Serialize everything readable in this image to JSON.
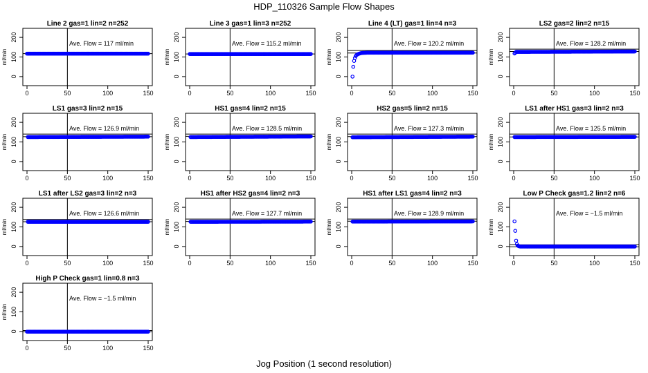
{
  "figure": {
    "title": "HDP_110326  Sample Flow Shapes",
    "xlabel": "Jog Position (1 second resolution)"
  },
  "chart_data": [
    {
      "type": "scatter",
      "title": "Line 2 gas=1 lin=2 n=252",
      "ylabel": "ml/min",
      "annotation": "Ave. Flow =  117  ml/min",
      "xlim": [
        0,
        150
      ],
      "ylim": [
        -25,
        225
      ],
      "xticks": [
        0,
        50,
        100,
        150
      ],
      "yticks": [
        0,
        100,
        200
      ],
      "vline": 50,
      "hline": 117,
      "x": [
        0,
        150
      ],
      "y": [
        117,
        117
      ],
      "color": "#0000ff"
    },
    {
      "type": "scatter",
      "title": "Line 3 gas=1 lin=3 n=252",
      "ylabel": "ml/min",
      "annotation": "Ave. Flow =  115.2  ml/min",
      "xlim": [
        0,
        150
      ],
      "ylim": [
        -25,
        225
      ],
      "xticks": [
        0,
        50,
        100,
        150
      ],
      "yticks": [
        0,
        100,
        200
      ],
      "vline": 50,
      "hline": 115.2,
      "x": [
        0,
        150
      ],
      "y": [
        115,
        115
      ],
      "color": "#0000ff"
    },
    {
      "type": "scatter",
      "title": "Line 4 (LT) gas=1 lin=4 n=3",
      "ylabel": "ml/min",
      "annotation": "Ave. Flow =  120.2  ml/min",
      "xlim": [
        0,
        150
      ],
      "ylim": [
        -25,
        225
      ],
      "xticks": [
        0,
        50,
        100,
        150
      ],
      "yticks": [
        0,
        100,
        200
      ],
      "vline": 50,
      "hline": [
        120.2,
        133
      ],
      "x": [
        1,
        2,
        3,
        4,
        5,
        6,
        8,
        10,
        12,
        15,
        20,
        150
      ],
      "y": [
        0,
        50,
        80,
        95,
        105,
        110,
        115,
        118,
        120,
        121,
        122,
        122
      ],
      "color": "#0000ff"
    },
    {
      "type": "scatter",
      "title": "LS2 gas=2 lin=2 n=15",
      "ylabel": "ml/min",
      "annotation": "Ave. Flow =  128.2  ml/min",
      "xlim": [
        0,
        150
      ],
      "ylim": [
        -25,
        225
      ],
      "xticks": [
        0,
        50,
        100,
        150
      ],
      "yticks": [
        0,
        100,
        200
      ],
      "vline": 50,
      "hline": [
        128.2,
        140
      ],
      "x": [
        1,
        3,
        150
      ],
      "y": [
        118,
        126,
        128
      ],
      "color": "#0000ff"
    },
    {
      "type": "scatter",
      "title": "LS1 gas=3 lin=2 n=15",
      "ylabel": "ml/min",
      "annotation": "Ave. Flow =  126.9  ml/min",
      "xlim": [
        0,
        150
      ],
      "ylim": [
        -25,
        225
      ],
      "xticks": [
        0,
        50,
        100,
        150
      ],
      "yticks": [
        0,
        100,
        200
      ],
      "vline": 50,
      "hline": [
        126.9,
        140
      ],
      "x": [
        1,
        150
      ],
      "y": [
        125,
        127
      ],
      "color": "#0000ff"
    },
    {
      "type": "scatter",
      "title": "HS1 gas=4 lin=2 n=15",
      "ylabel": "ml/min",
      "annotation": "Ave. Flow =  128.5  ml/min",
      "xlim": [
        0,
        150
      ],
      "ylim": [
        -25,
        225
      ],
      "xticks": [
        0,
        50,
        100,
        150
      ],
      "yticks": [
        0,
        100,
        200
      ],
      "vline": 50,
      "hline": [
        128.5,
        140
      ],
      "x": [
        1,
        150
      ],
      "y": [
        125,
        128
      ],
      "color": "#0000ff"
    },
    {
      "type": "scatter",
      "title": "HS2 gas=5 lin=2 n=15",
      "ylabel": "ml/min",
      "annotation": "Ave. Flow =  127.3  ml/min",
      "xlim": [
        0,
        150
      ],
      "ylim": [
        -25,
        225
      ],
      "xticks": [
        0,
        50,
        100,
        150
      ],
      "yticks": [
        0,
        100,
        200
      ],
      "vline": 50,
      "hline": [
        127.3,
        140
      ],
      "x": [
        1,
        150
      ],
      "y": [
        124,
        127
      ],
      "color": "#0000ff"
    },
    {
      "type": "scatter",
      "title": "LS1 after HS1 gas=3 lin=2 n=3",
      "ylabel": "ml/min",
      "annotation": "Ave. Flow =  125.5  ml/min",
      "xlim": [
        0,
        150
      ],
      "ylim": [
        -25,
        225
      ],
      "xticks": [
        0,
        50,
        100,
        150
      ],
      "yticks": [
        0,
        100,
        200
      ],
      "vline": 50,
      "hline": [
        125.5,
        140
      ],
      "x": [
        1,
        150
      ],
      "y": [
        125,
        126
      ],
      "color": "#0000ff"
    },
    {
      "type": "scatter",
      "title": "LS1 after LS2 gas=3 lin=2 n=3",
      "ylabel": "ml/min",
      "annotation": "Ave. Flow =  126.6  ml/min",
      "xlim": [
        0,
        150
      ],
      "ylim": [
        -25,
        225
      ],
      "xticks": [
        0,
        50,
        100,
        150
      ],
      "yticks": [
        0,
        100,
        200
      ],
      "vline": 50,
      "hline": [
        126.6,
        138
      ],
      "x": [
        1,
        150
      ],
      "y": [
        126,
        126
      ],
      "color": "#0000ff"
    },
    {
      "type": "scatter",
      "title": "HS1 after HS2 gas=4 lin=2 n=3",
      "ylabel": "ml/min",
      "annotation": "Ave. Flow =  127.7  ml/min",
      "xlim": [
        0,
        150
      ],
      "ylim": [
        -25,
        225
      ],
      "xticks": [
        0,
        50,
        100,
        150
      ],
      "yticks": [
        0,
        100,
        200
      ],
      "vline": 50,
      "hline": [
        127.7,
        140
      ],
      "x": [
        1,
        150
      ],
      "y": [
        126,
        127
      ],
      "color": "#0000ff"
    },
    {
      "type": "scatter",
      "title": "HS1 after LS1 gas=4 lin=2 n=3",
      "ylabel": "ml/min",
      "annotation": "Ave. Flow =  128.9  ml/min",
      "xlim": [
        0,
        150
      ],
      "ylim": [
        -25,
        225
      ],
      "xticks": [
        0,
        50,
        100,
        150
      ],
      "yticks": [
        0,
        100,
        200
      ],
      "vline": 50,
      "hline": [
        128.9,
        140
      ],
      "x": [
        1,
        150
      ],
      "y": [
        127,
        128
      ],
      "color": "#0000ff"
    },
    {
      "type": "scatter",
      "title": "Low P Check gas=1.2 lin=2 n=6",
      "ylabel": "ml/min",
      "annotation": "Ave. Flow =  −1.5  ml/min",
      "xlim": [
        0,
        150
      ],
      "ylim": [
        -25,
        225
      ],
      "xticks": [
        0,
        50,
        100,
        150
      ],
      "yticks": [
        0,
        100,
        200
      ],
      "vline": 50,
      "hline": [
        -1.5,
        9
      ],
      "x": [
        1,
        2,
        3,
        4,
        5,
        6,
        8,
        150
      ],
      "y": [
        128,
        80,
        30,
        12,
        5,
        2,
        0,
        0
      ],
      "color": "#0000ff"
    },
    {
      "type": "scatter",
      "title": "High P Check gas=1 lin=0.8 n=3",
      "ylabel": "ml/min",
      "annotation": "Ave. Flow =  −1.5  ml/min",
      "xlim": [
        0,
        150
      ],
      "ylim": [
        -25,
        225
      ],
      "xticks": [
        0,
        50,
        100,
        150
      ],
      "yticks": [
        0,
        100,
        200
      ],
      "vline": 50,
      "hline": [
        -1.5,
        5
      ],
      "x": [
        0,
        150
      ],
      "y": [
        -1,
        -1
      ],
      "color": "#0000ff"
    }
  ]
}
